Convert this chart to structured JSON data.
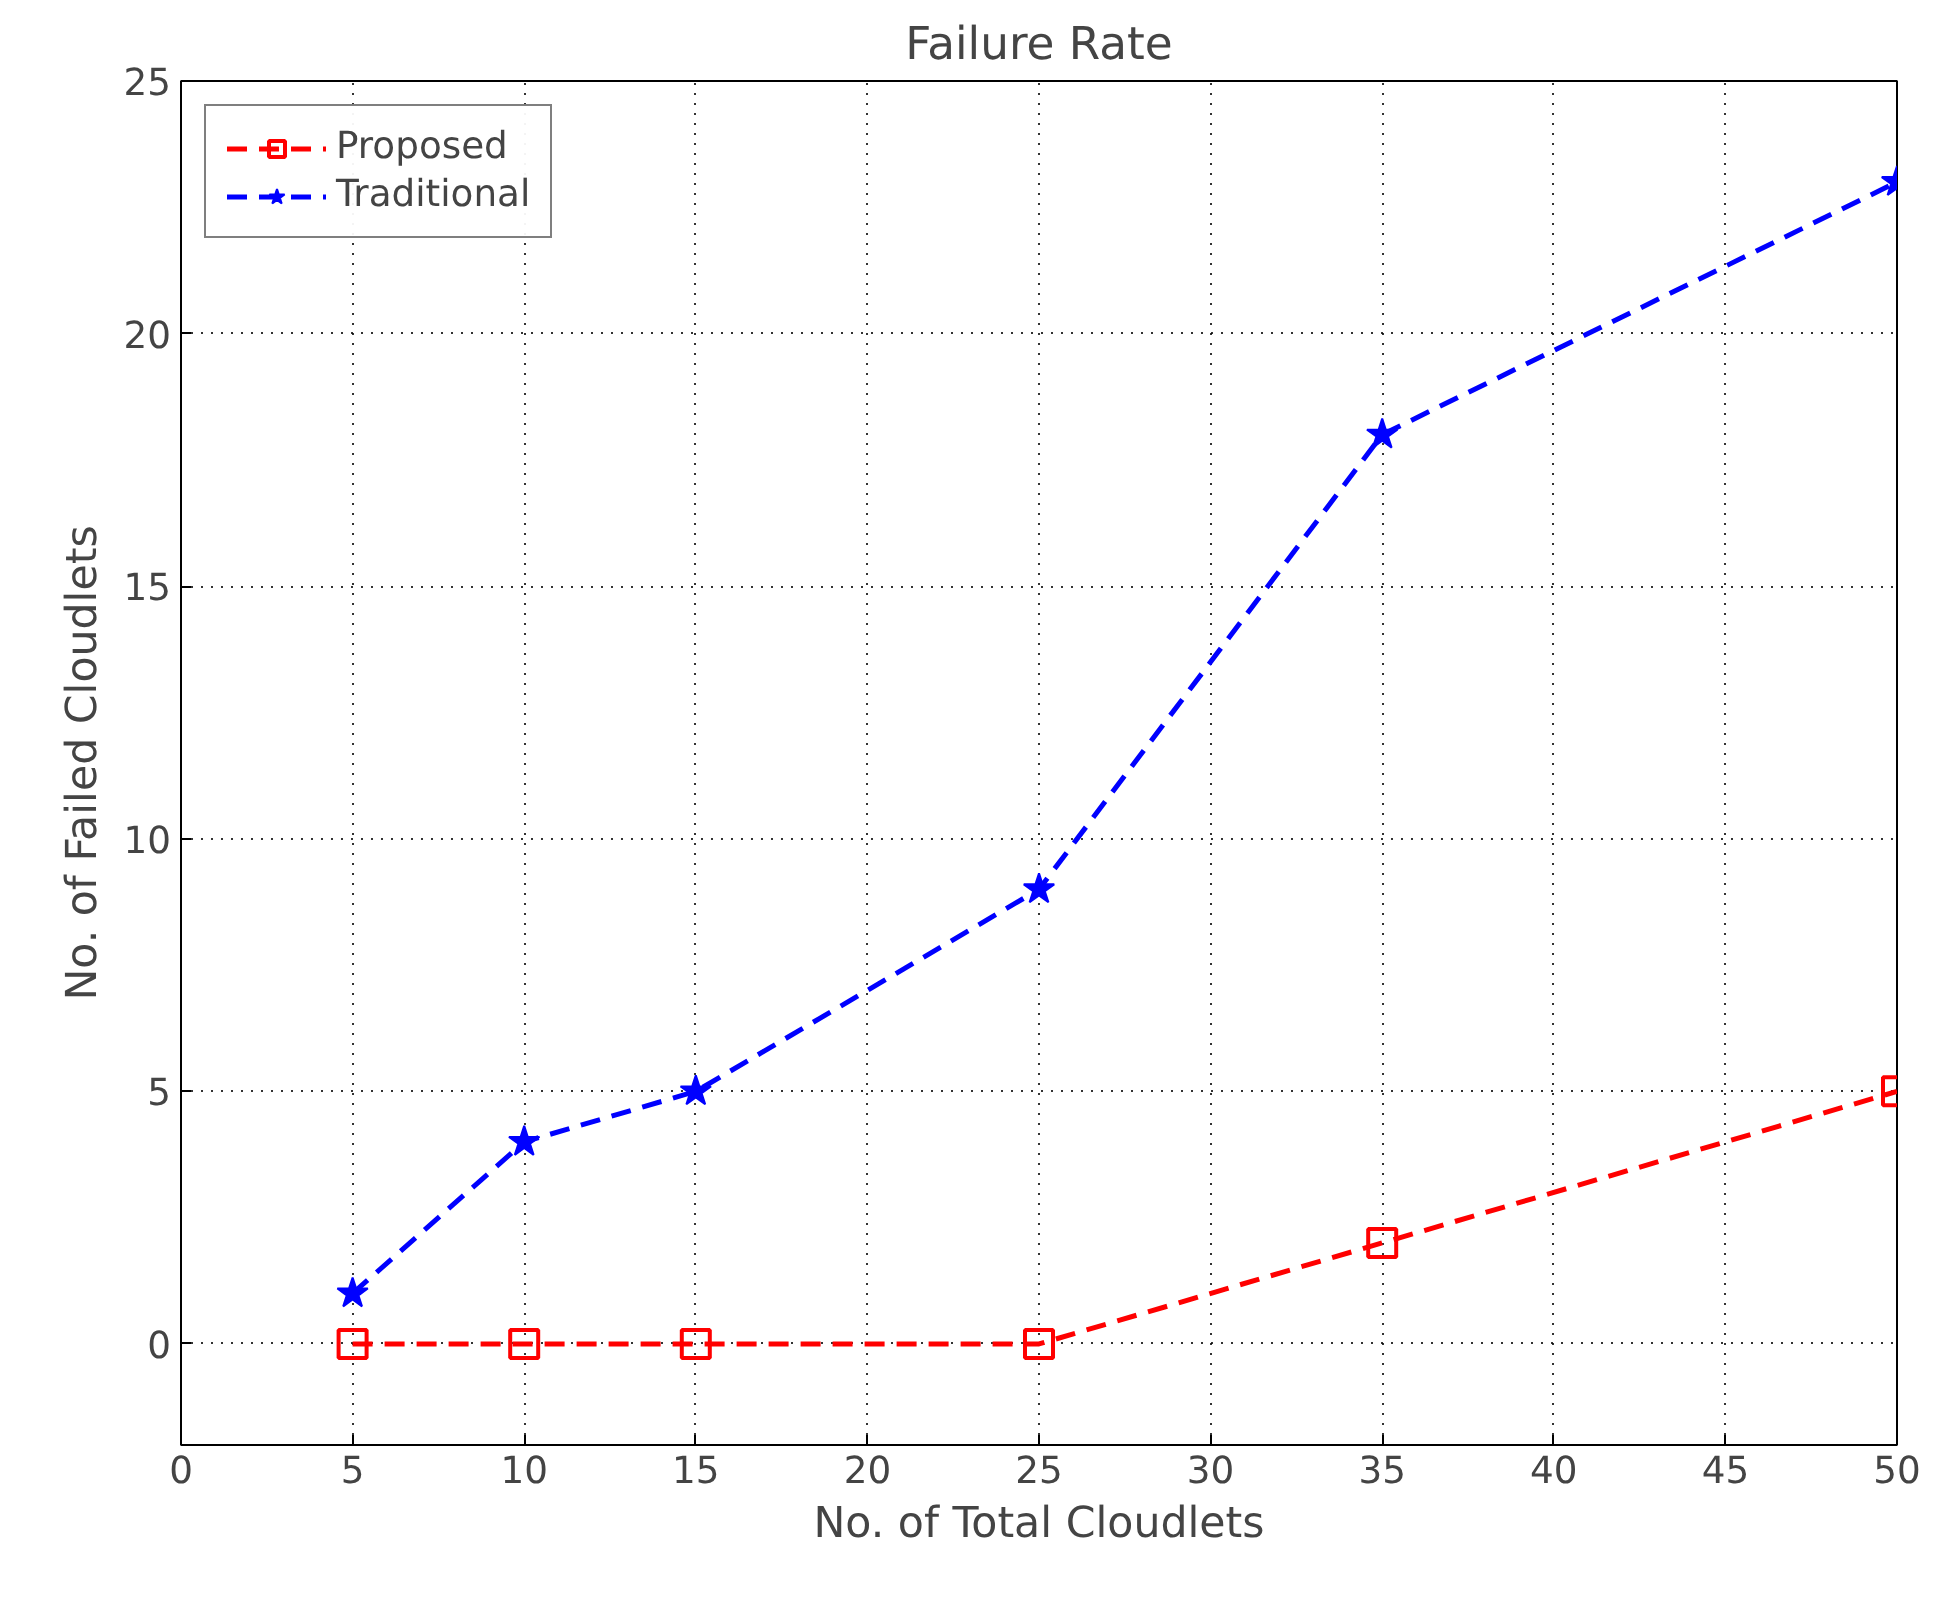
{
  "chart_data": {
    "type": "line",
    "title": "Failure Rate",
    "xlabel": "No. of Total Cloudlets",
    "ylabel": "No. of Failed Cloudlets",
    "x": [
      5,
      10,
      15,
      25,
      35,
      50
    ],
    "series": [
      {
        "name": "Proposed",
        "color": "#ff0000",
        "marker": "square",
        "values": [
          0,
          0,
          0,
          0,
          2,
          5
        ]
      },
      {
        "name": "Traditional",
        "color": "#0000ff",
        "marker": "star",
        "values": [
          1,
          4,
          5,
          9,
          18,
          23
        ]
      }
    ],
    "xlim": [
      0,
      50
    ],
    "xticks": [
      0,
      5,
      10,
      15,
      20,
      25,
      30,
      35,
      40,
      45,
      50
    ],
    "ylim": [
      -2,
      25
    ],
    "yticks": [
      0,
      5,
      10,
      15,
      20,
      25
    ],
    "grid": true,
    "legend": "top left",
    "line_style": "dashed"
  }
}
